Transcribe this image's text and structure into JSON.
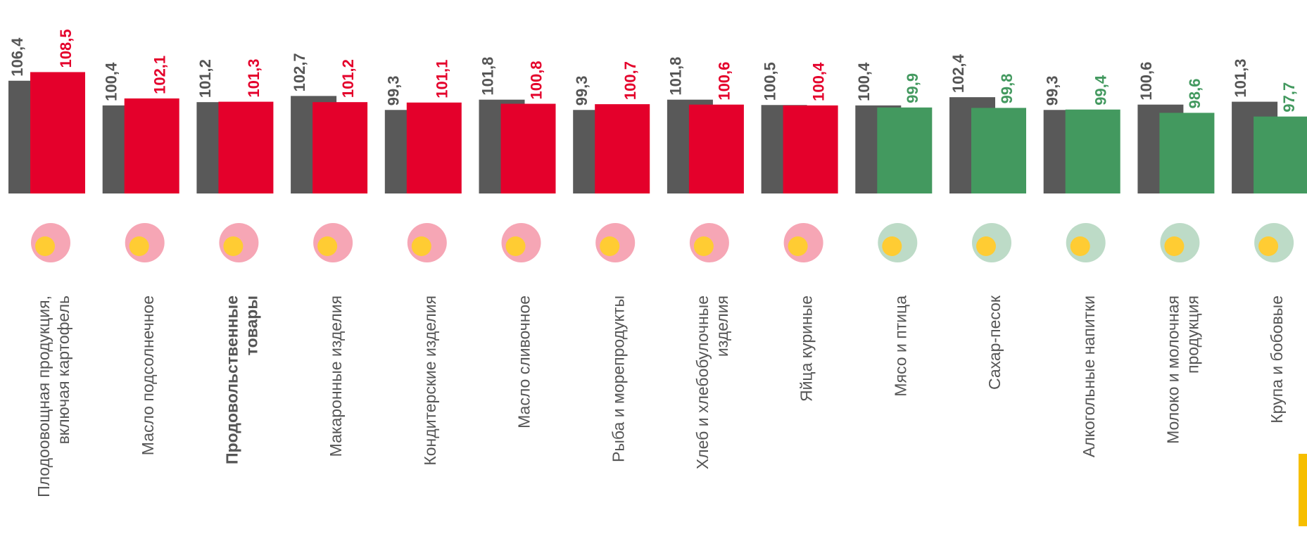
{
  "chart_data": {
    "type": "bar",
    "categories": [
      [
        "Плодоовощная продукция,",
        "включая картофель"
      ],
      [
        "Масло подсолнечное"
      ],
      [
        "Продовольственные",
        "товары"
      ],
      [
        "Макаронные изделия"
      ],
      [
        "Кондитерские изделия"
      ],
      [
        "Масло сливочное"
      ],
      [
        "Рыба и морепродукты"
      ],
      [
        "Хлеб и хлебобулочные",
        "изделия"
      ],
      [
        "Яйца куриные"
      ],
      [
        "Мясо и птица"
      ],
      [
        "Сахар-песок"
      ],
      [
        "Алкогольные напитки"
      ],
      [
        "Молоко и молочная",
        "продукция"
      ],
      [
        "Крупа и бобовые"
      ]
    ],
    "series": [
      {
        "color": "#595959",
        "values": [
          106.4,
          100.4,
          101.2,
          102.7,
          99.3,
          101.8,
          99.3,
          101.8,
          100.5,
          100.4,
          102.4,
          99.3,
          100.6,
          101.3
        ],
        "value_labels": [
          "106,4",
          "100,4",
          "101,2",
          "102,7",
          "99,3",
          "101,8",
          "99,3",
          "101,8",
          "100,5",
          "100,4",
          "102,4",
          "99,3",
          "100,6",
          "101,3"
        ]
      },
      {
        "colors": [
          "#e4002b",
          "#e4002b",
          "#e4002b",
          "#e4002b",
          "#e4002b",
          "#e4002b",
          "#e4002b",
          "#e4002b",
          "#e4002b",
          "#43995f",
          "#43995f",
          "#43995f",
          "#43995f",
          "#43995f"
        ],
        "values": [
          108.5,
          102.1,
          101.3,
          101.2,
          101.1,
          100.8,
          100.7,
          100.6,
          100.4,
          99.9,
          99.8,
          99.4,
          98.6,
          97.7
        ],
        "value_labels": [
          "108,5",
          "102,1",
          "101,3",
          "101,2",
          "101,1",
          "100,8",
          "100,7",
          "100,6",
          "100,4",
          "99,9",
          "99,8",
          "99,4",
          "98,6",
          "97,7"
        ]
      }
    ],
    "ylim": [
      79,
      112
    ]
  }
}
